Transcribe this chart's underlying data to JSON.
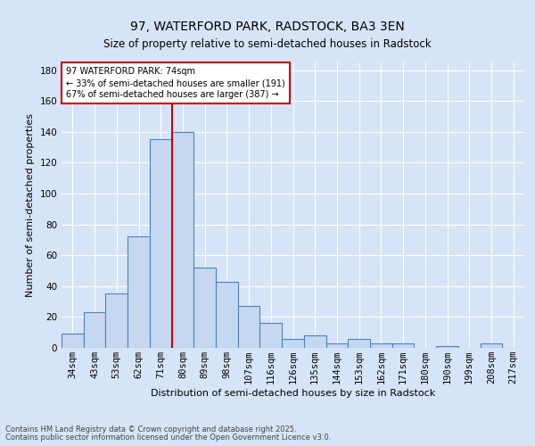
{
  "title1": "97, WATERFORD PARK, RADSTOCK, BA3 3EN",
  "title2": "Size of property relative to semi-detached houses in Radstock",
  "xlabel": "Distribution of semi-detached houses by size in Radstock",
  "ylabel": "Number of semi-detached properties",
  "categories": [
    "34sqm",
    "43sqm",
    "53sqm",
    "62sqm",
    "71sqm",
    "80sqm",
    "89sqm",
    "98sqm",
    "107sqm",
    "116sqm",
    "126sqm",
    "135sqm",
    "144sqm",
    "153sqm",
    "162sqm",
    "171sqm",
    "180sqm",
    "190sqm",
    "199sqm",
    "208sqm",
    "217sqm"
  ],
  "values": [
    9,
    23,
    35,
    72,
    135,
    140,
    52,
    43,
    27,
    16,
    6,
    8,
    3,
    6,
    3,
    3,
    0,
    1,
    0,
    3,
    0
  ],
  "bar_color": "#c5d8f0",
  "bar_edge_color": "#4f81bd",
  "background_color": "#d6e4f7",
  "grid_color": "#ffffff",
  "vline_x": 4.5,
  "vline_color": "#cc0000",
  "annotation_text": "97 WATERFORD PARK: 74sqm\n← 33% of semi-detached houses are smaller (191)\n67% of semi-detached houses are larger (387) →",
  "annotation_box_color": "#ffffff",
  "annotation_box_edge": "#cc0000",
  "footer1": "Contains HM Land Registry data © Crown copyright and database right 2025.",
  "footer2": "Contains public sector information licensed under the Open Government Licence v3.0.",
  "ylim": [
    0,
    185
  ],
  "yticks": [
    0,
    20,
    40,
    60,
    80,
    100,
    120,
    140,
    160,
    180
  ],
  "title1_fontsize": 10,
  "title2_fontsize": 8.5,
  "xlabel_fontsize": 8,
  "ylabel_fontsize": 8,
  "tick_fontsize": 7.5,
  "annotation_fontsize": 7.0,
  "footer_fontsize": 6.0
}
